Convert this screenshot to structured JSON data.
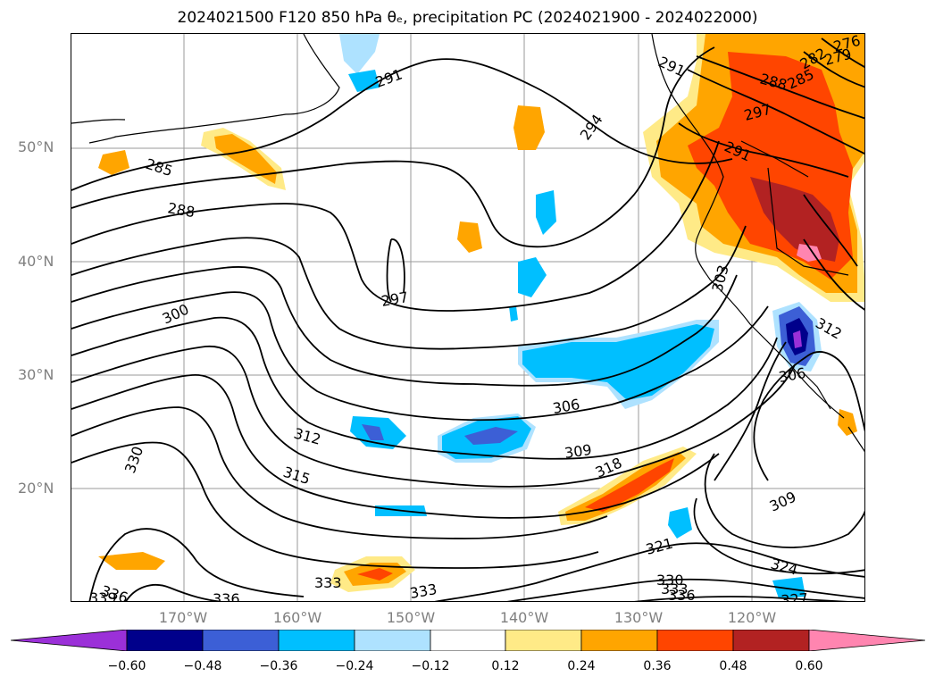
{
  "title": "2024021500 F120 850 hPa θₑ, precipitation PC (2024021900 - 2024022000)",
  "lat_labels": [
    "50°N",
    "40°N",
    "30°N",
    "20°N"
  ],
  "lon_labels": [
    "170°W",
    "160°W",
    "150°W",
    "140°W",
    "130°W",
    "120°W"
  ],
  "colorbar": {
    "ticks": [
      "−0.60",
      "−0.48",
      "−0.36",
      "−0.24",
      "−0.12",
      "0.12",
      "0.24",
      "0.36",
      "0.48",
      "0.60"
    ],
    "colors": [
      "#9b30d8",
      "#00008b",
      "#3c5fd6",
      "#00bfff",
      "#aee2ff",
      "#ffffff",
      "#ffea87",
      "#ffa500",
      "#ff4500",
      "#b22222",
      "#ff85b0"
    ]
  },
  "contour_labels": [
    "285",
    "288",
    "291",
    "291",
    "291",
    "294",
    "297",
    "300",
    "303",
    "306",
    "306",
    "309",
    "309",
    "312",
    "312",
    "315",
    "318",
    "321",
    "324",
    "327",
    "330",
    "330",
    "333",
    "333",
    "333",
    "336",
    "336",
    "336",
    "339",
    "276",
    "279",
    "282",
    "285",
    "288",
    "297"
  ]
}
